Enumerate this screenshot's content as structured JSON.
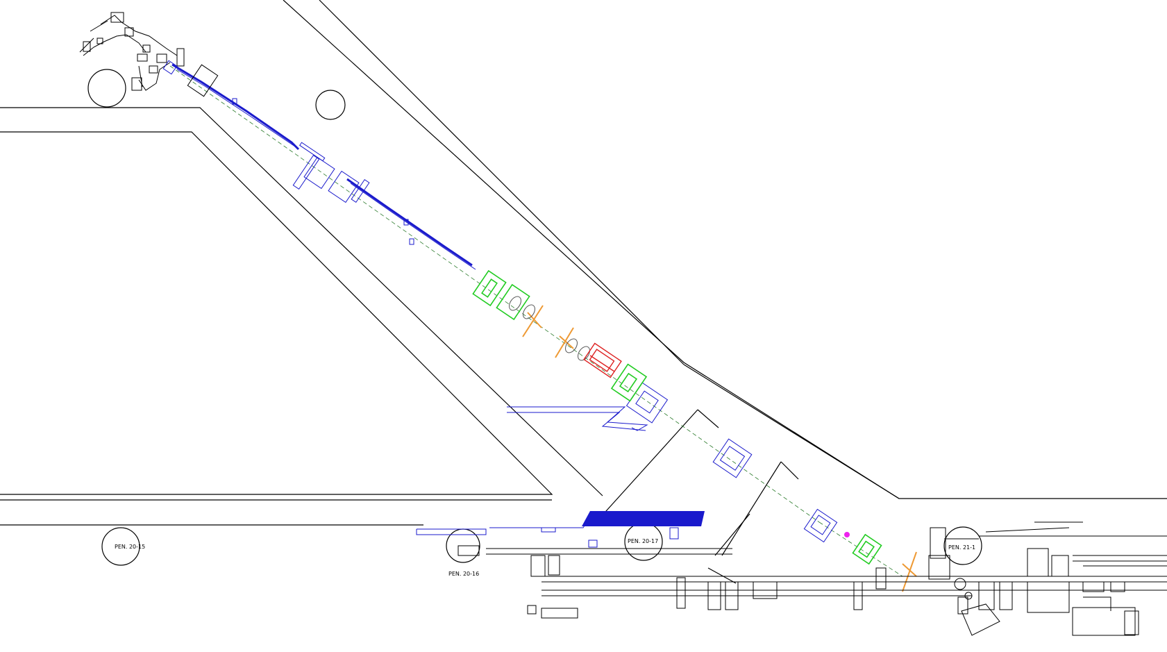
{
  "drawing": {
    "colors": {
      "background": "#ffffff",
      "wall": "#000000",
      "beamline": "#1a1acc",
      "quad_green": "#22cc22",
      "orange_element": "#ee9933",
      "red_element": "#dd2222",
      "magenta_element": "#ee22ee",
      "gray": "#777777"
    },
    "penetrations": [
      {
        "id": "pen-20-15",
        "label": "PEN. 20-15"
      },
      {
        "id": "pen-20-16",
        "label": "PEN. 20-16"
      },
      {
        "id": "pen-20-17",
        "label": "PEN. 20-17"
      },
      {
        "id": "pen-21-1",
        "label": "PEN. 21-1"
      }
    ]
  }
}
